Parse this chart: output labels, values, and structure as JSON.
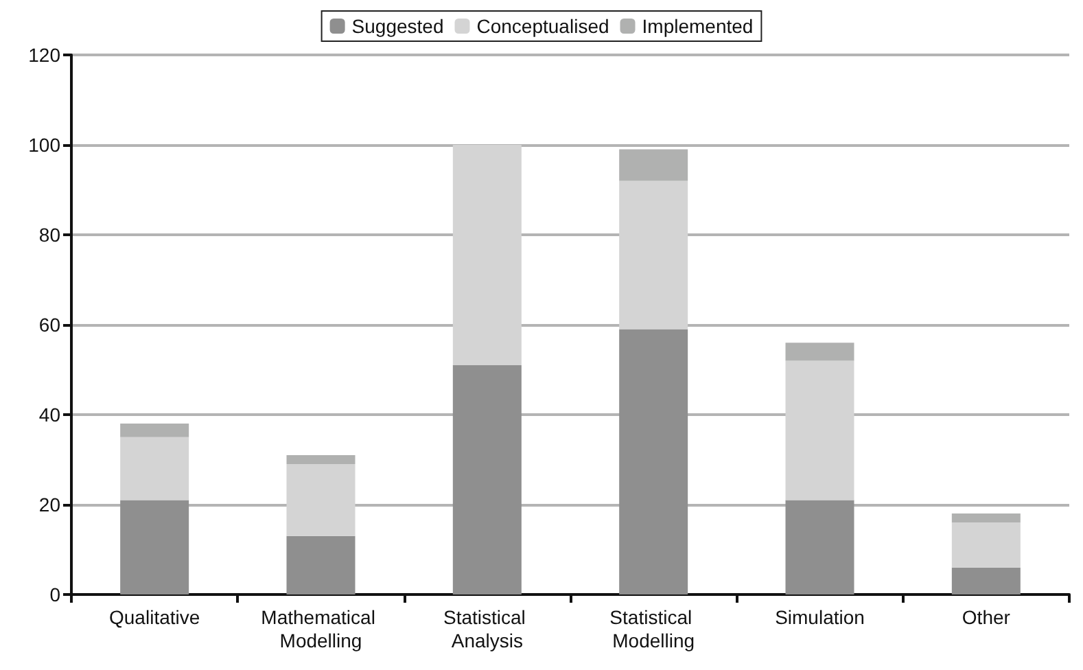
{
  "chart_data": {
    "type": "bar",
    "stacked": true,
    "categories": [
      "Qualitative",
      "Mathematical Modelling",
      "Statistical Analysis",
      "Statistical Modelling",
      "Simulation",
      "Other"
    ],
    "series": [
      {
        "name": "Suggested",
        "color": "#8f8f8f",
        "values": [
          21,
          13,
          51,
          59,
          21,
          6
        ]
      },
      {
        "name": "Conceptualised",
        "color": "#d4d4d4",
        "values": [
          14,
          16,
          49,
          33,
          31,
          10
        ]
      },
      {
        "name": "Implemented",
        "color": "#b0b1b0",
        "values": [
          3,
          2,
          0,
          7,
          4,
          2
        ]
      }
    ],
    "ylim": [
      0,
      120
    ],
    "yticks": [
      0,
      20,
      40,
      60,
      80,
      100,
      120
    ],
    "grid": "y",
    "legend": "top"
  }
}
